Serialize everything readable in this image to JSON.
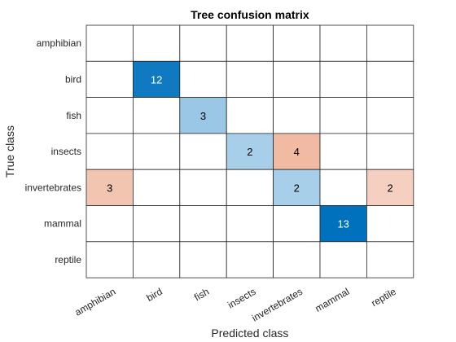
{
  "chart_data": {
    "type": "heatmap",
    "title": "Tree confusion matrix",
    "xlabel": "Predicted class",
    "ylabel": "True class",
    "row_labels": [
      "amphibian",
      "bird",
      "fish",
      "insects",
      "invertebrates",
      "mammal",
      "reptile"
    ],
    "col_labels": [
      "amphibian",
      "bird",
      "fish",
      "insects",
      "invertebrates",
      "mammal",
      "reptile"
    ],
    "values": [
      [
        0,
        0,
        0,
        0,
        0,
        0,
        0
      ],
      [
        0,
        12,
        0,
        0,
        0,
        0,
        0
      ],
      [
        0,
        0,
        3,
        0,
        0,
        0,
        0
      ],
      [
        0,
        0,
        0,
        2,
        4,
        0,
        0
      ],
      [
        3,
        0,
        0,
        0,
        2,
        0,
        2
      ],
      [
        0,
        0,
        0,
        0,
        0,
        13,
        0
      ],
      [
        0,
        0,
        0,
        0,
        0,
        0,
        0
      ]
    ],
    "colors": {
      "correct": "#0072BD",
      "incorrect": "#D95319",
      "grid": "#262626",
      "light_text": "#ffffff",
      "dark_text": "#000000"
    }
  }
}
